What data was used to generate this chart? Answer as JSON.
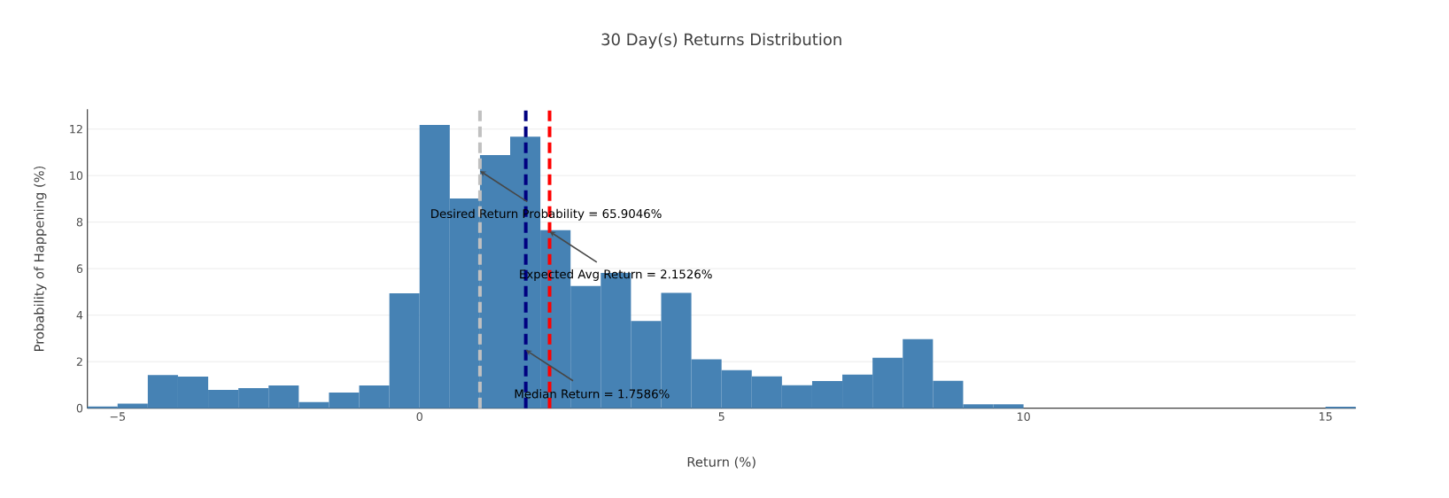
{
  "chart_data": {
    "type": "histogram",
    "title": "30 Day(s) Returns Distribution",
    "xlabel": "Return (%)",
    "ylabel": "Probability of Happening (%)",
    "bins": [
      -5.5,
      -5,
      -4.5,
      -4,
      -3.5,
      -3,
      -2.5,
      -2,
      -1.5,
      -1,
      -0.5,
      0,
      0.5,
      1,
      1.5,
      2,
      2.5,
      3,
      3.5,
      4,
      4.5,
      5,
      5.5,
      6,
      6.5,
      7,
      7.5,
      8,
      8.5,
      9,
      9.5,
      10,
      10.5,
      11,
      11.5,
      12,
      12.5,
      13,
      13.5,
      14,
      14.5,
      15,
      15.5
    ],
    "values": [
      0.07,
      0.2,
      1.43,
      1.36,
      0.79,
      0.86,
      0.98,
      0.26,
      0.67,
      0.98,
      4.94,
      12.18,
      9.02,
      10.88,
      11.67,
      7.65,
      5.25,
      5.82,
      3.75,
      4.96,
      2.1,
      1.63,
      1.37,
      0.99,
      1.17,
      1.44,
      2.17,
      2.97,
      1.18,
      0.17,
      0.17,
      0,
      0,
      0,
      0,
      0,
      0,
      0,
      0,
      0,
      0,
      0.06
    ],
    "color": "#4682b4",
    "xlim": [
      -5.5,
      15.5
    ],
    "ylim": [
      0,
      12.85
    ],
    "xticks": [
      {
        "value": -5,
        "label": "−5"
      },
      0,
      5,
      10,
      15
    ],
    "yticks": [
      0,
      2,
      4,
      6,
      8,
      10,
      12
    ],
    "grid": "y",
    "ref_lines": [
      {
        "axis": "x",
        "value": 1.0,
        "color": "#c0c0c0",
        "line_style": "dashed"
      },
      {
        "axis": "x",
        "value": 1.7586,
        "color": "#000080",
        "line_style": "dashed"
      },
      {
        "axis": "x",
        "value": 2.1526,
        "color": "#ff0000",
        "line_style": "dashed"
      }
    ],
    "annotations": [
      {
        "text": "Desired Return Probability = 65.9046%",
        "x": 1.0,
        "y": 10.2
      },
      {
        "text": "Expected Avg Return = 2.1526%",
        "x": 2.1526,
        "y": 7.6
      },
      {
        "text": "Median Return = 1.7586%",
        "x": 1.7586,
        "y": 2.5
      }
    ]
  }
}
